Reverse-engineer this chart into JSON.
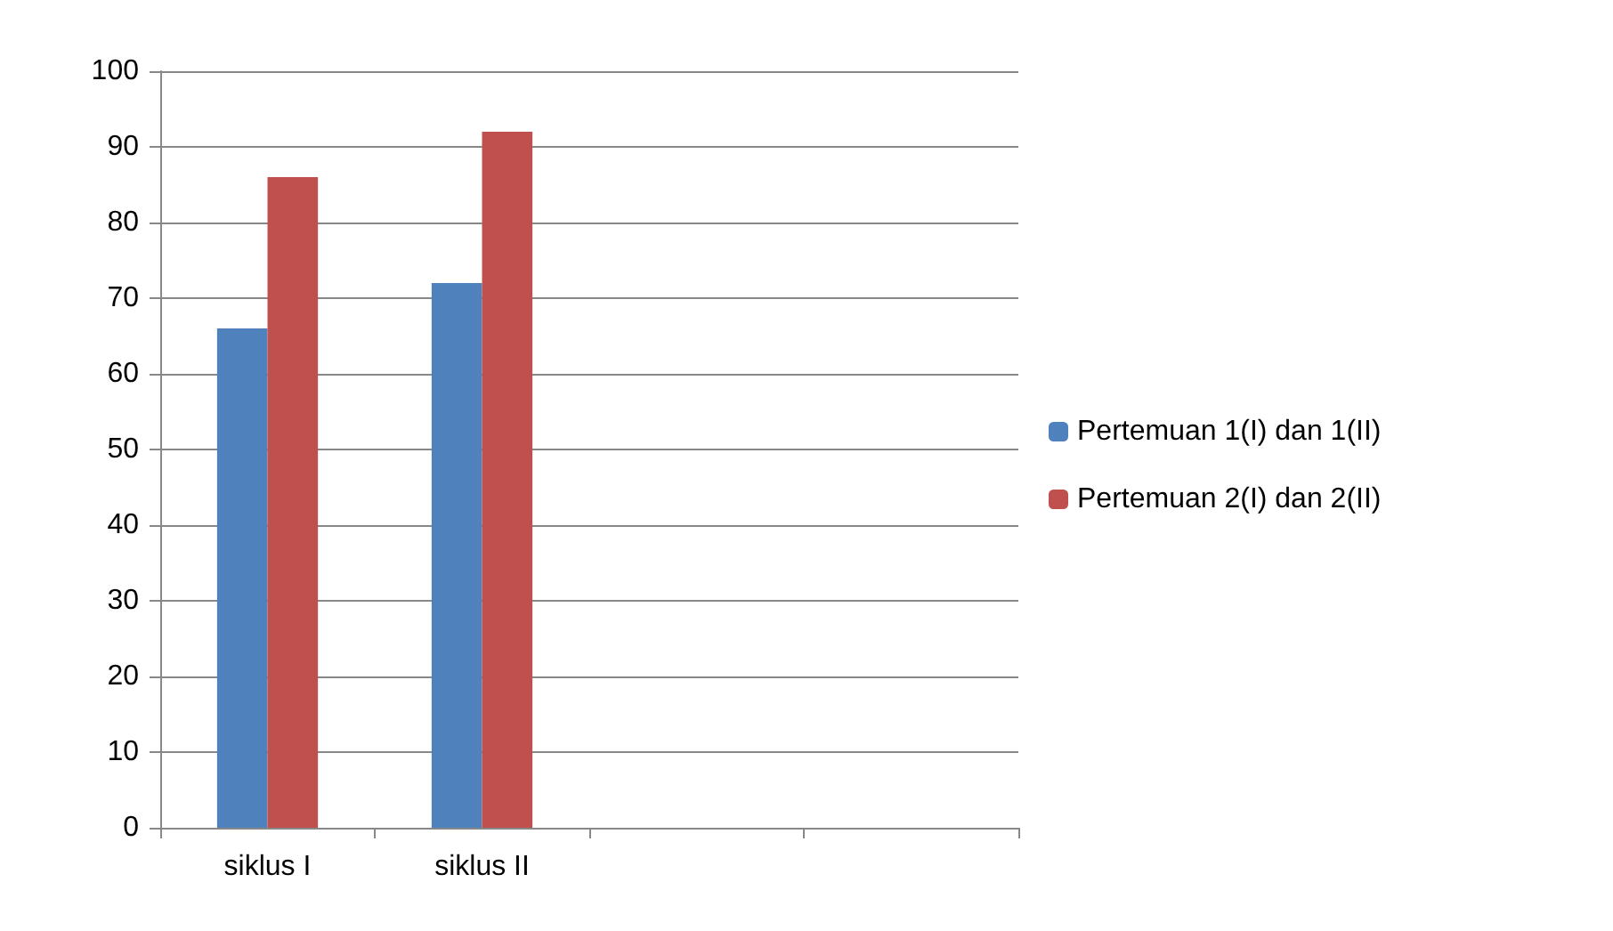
{
  "chart_data": {
    "type": "bar",
    "categories": [
      "siklus I",
      "siklus II",
      null,
      null
    ],
    "series": [
      {
        "name": "Pertemuan 1(I) dan 1(II)",
        "color": "#4f81bd",
        "values": [
          66,
          72,
          null,
          null
        ]
      },
      {
        "name": "Pertemuan 2(I) dan 2(II)",
        "color": "#c0504d",
        "values": [
          86,
          92,
          null,
          null
        ]
      }
    ],
    "ylim": [
      0,
      100
    ],
    "yticks": [
      0,
      10,
      20,
      30,
      40,
      50,
      60,
      70,
      80,
      90,
      100
    ],
    "grid": "y",
    "legend": "right"
  }
}
